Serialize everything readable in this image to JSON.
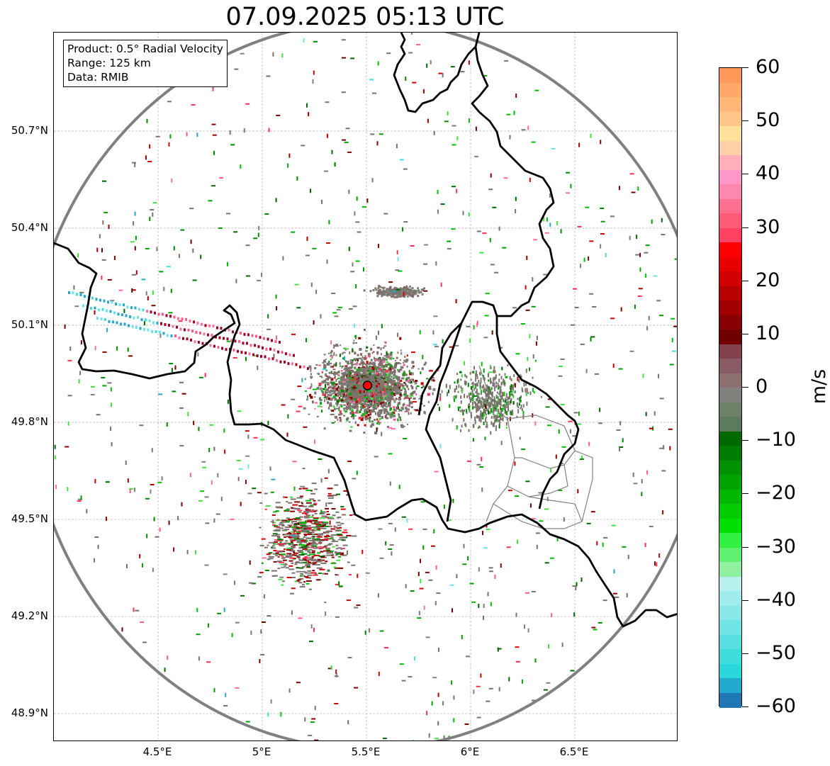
{
  "title": "07.09.2025 05:13 UTC",
  "info": {
    "product": "Product: 0.5° Radial Velocity",
    "range": "Range: 125 km",
    "data": "Data: RMIB"
  },
  "y_ticks": [
    "50.7°N",
    "50.4°N",
    "50.1°N",
    "49.8°N",
    "49.5°N",
    "49.2°N",
    "48.9°N"
  ],
  "x_ticks": [
    "4.5°E",
    "5°E",
    "5.5°E",
    "6°E",
    "6.5°E"
  ],
  "colorbar": {
    "unit": "m/s",
    "ticks": [
      "60",
      "50",
      "40",
      "30",
      "20",
      "10",
      "0",
      "−10",
      "−20",
      "−30",
      "−40",
      "−50",
      "−60"
    ],
    "range": [
      -60,
      60
    ],
    "colors": [
      "#1f77b4",
      "#22aacc",
      "#2ad8dc",
      "#40dcdc",
      "#58e0e0",
      "#70e4e4",
      "#88e8e8",
      "#a0ecec",
      "#b8f0f0",
      "#90f0a0",
      "#60f070",
      "#30f040",
      "#00e000",
      "#00cc00",
      "#00b800",
      "#00a400",
      "#009000",
      "#007c00",
      "#006800",
      "#5c7a5c",
      "#6e8066",
      "#80807c",
      "#8a7070",
      "#885a64",
      "#80404c",
      "#700000",
      "#880000",
      "#a00000",
      "#b80000",
      "#d00000",
      "#e80000",
      "#ff0000",
      "#ff4060",
      "#ff5a78",
      "#ff7090",
      "#ff88b0",
      "#ff98c8",
      "#ffb0b8",
      "#ffd0a8",
      "#ffe098",
      "#ffc888",
      "#ffb878",
      "#ffa868",
      "#ff9858"
    ]
  },
  "map": {
    "lon_range": [
      4.0,
      7.0
    ],
    "lat_range": [
      48.8,
      50.98
    ],
    "radar_center": [
      5.505,
      49.914
    ],
    "range_circle_color": "#808080",
    "border_color": "#000000",
    "regional_border_color": "#808080",
    "radar_marker_color": "#ff0000"
  }
}
